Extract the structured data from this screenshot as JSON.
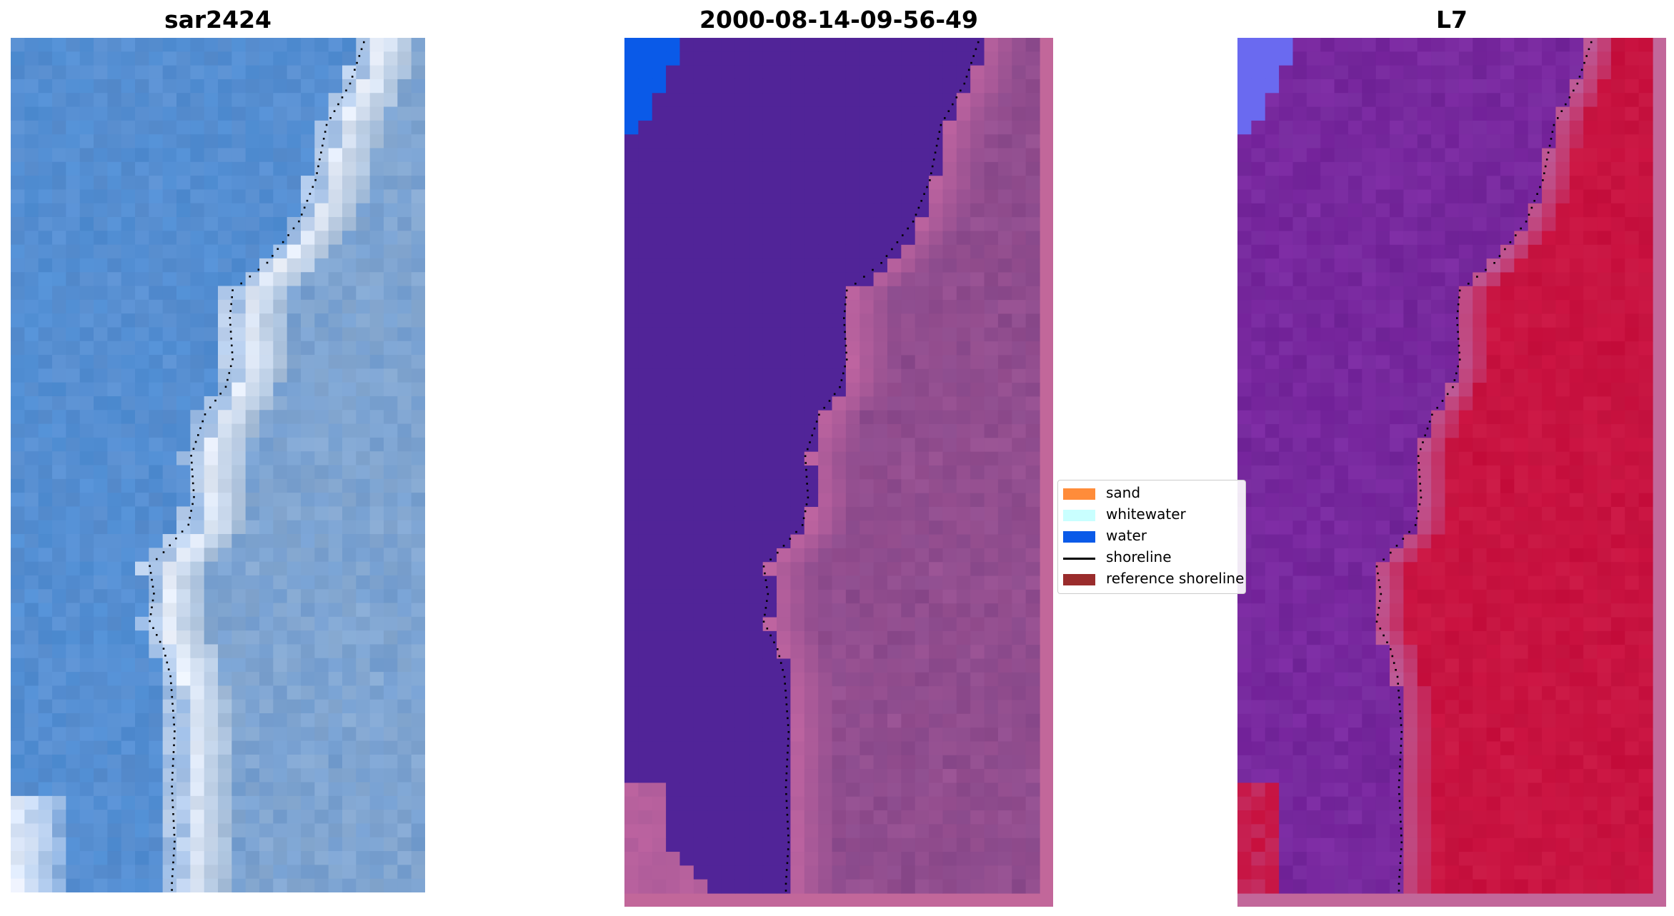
{
  "panels": [
    {
      "title": "sar2424"
    },
    {
      "title": "2000-08-14-09-56-49"
    },
    {
      "title": "L7"
    }
  ],
  "legend": {
    "items": [
      {
        "label": "sand",
        "color": "#ff8c3a",
        "kind": "patch"
      },
      {
        "label": "whitewater",
        "color": "#c9ffff",
        "kind": "patch"
      },
      {
        "label": "water",
        "color": "#0a5ae8",
        "kind": "patch"
      },
      {
        "label": "shoreline",
        "color": "#000000",
        "kind": "line"
      },
      {
        "label": "reference shoreline",
        "color": "#9a2c2c",
        "kind": "patch"
      }
    ]
  },
  "colors": {
    "rgb_water": "#5a8fd0",
    "rgb_whitewater": "#f2f6ff",
    "class_water": "#512498",
    "class_land": "#8a4a8c",
    "class_border": "#c2679a",
    "class_corner_water": "#0a5ae8",
    "mndwi_water": "#7a28a0",
    "mndwi_land": "#c8103e",
    "mndwi_corner": "#6a6af0"
  }
}
